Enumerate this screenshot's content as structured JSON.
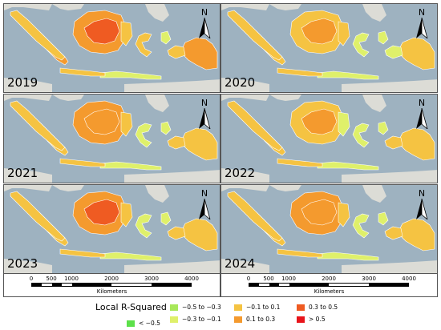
{
  "panels": [
    {
      "year": "2019",
      "scheme": [
        3,
        4,
        5,
        4,
        3,
        3,
        4,
        2,
        2,
        3,
        3
      ]
    },
    {
      "year": "2020",
      "scheme": [
        3,
        3,
        4,
        3,
        3,
        2,
        3,
        2,
        2,
        3,
        2
      ]
    },
    {
      "year": "2021",
      "scheme": [
        3,
        3,
        4,
        4,
        3,
        2,
        3,
        2,
        2,
        3,
        3
      ]
    },
    {
      "year": "2022",
      "scheme": [
        3,
        3,
        4,
        3,
        2,
        2,
        3,
        2,
        2,
        3,
        3
      ]
    },
    {
      "year": "2023",
      "scheme": [
        3,
        3,
        5,
        4,
        3,
        2,
        3,
        2,
        2,
        3,
        3
      ]
    },
    {
      "year": "2024",
      "scheme": [
        3,
        3,
        4,
        4,
        3,
        2,
        3,
        2,
        2,
        3,
        3
      ]
    }
  ],
  "north_label": "N",
  "scale": {
    "ticks": [
      "0",
      "500",
      "1000",
      "2000",
      "3000",
      "4000"
    ],
    "tick_values": [
      0,
      500,
      1000,
      2000,
      3000,
      4000
    ],
    "max": 4000,
    "units": "Kilometers"
  },
  "legend": {
    "title": "Local R-Squared",
    "items": [
      {
        "label": "< −0.5",
        "color": "#5ce04a"
      },
      {
        "label": "−0.5 to −0.3",
        "color": "#a8e85a"
      },
      {
        "label": "−0.3 to −0.1",
        "color": "#dff06a"
      },
      {
        "label": "−0.1 to 0.1",
        "color": "#f5c342"
      },
      {
        "label": "0.1 to 0.3",
        "color": "#f49a2e"
      },
      {
        "label": "0.3 to 0.5",
        "color": "#ef5b22"
      },
      {
        "label": "> 0.5",
        "color": "#e8141a"
      }
    ]
  },
  "colors": {
    "sea": "#9eb2c0",
    "land_gray": "#dcdcd6"
  }
}
